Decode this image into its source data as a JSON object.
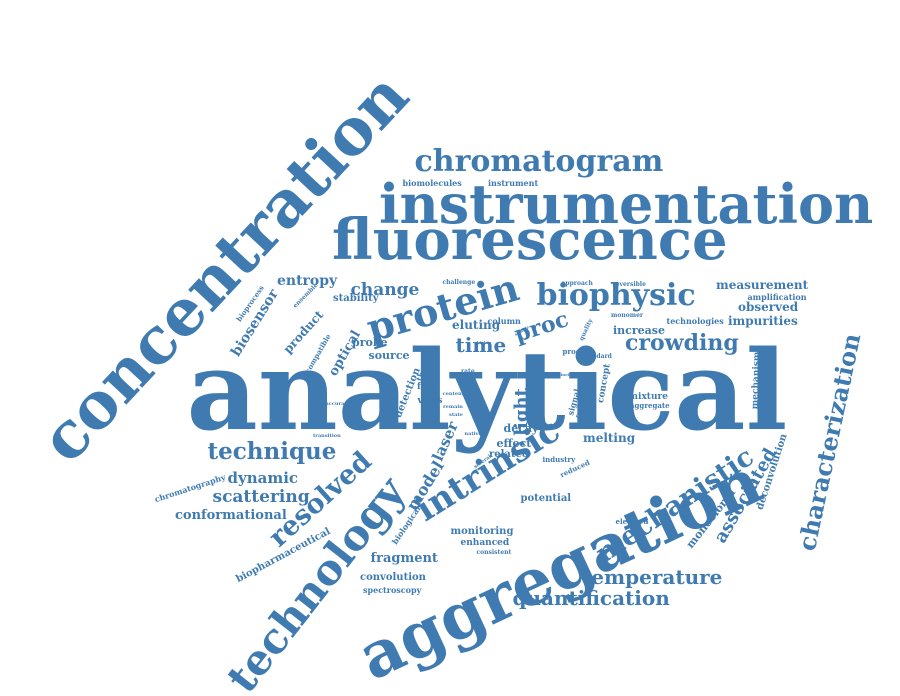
{
  "colors": {
    "word": "#3f7bb0",
    "background": "#ffffff"
  },
  "word_cloud": {
    "words": [
      {
        "id": "concentration",
        "text": "concentration"
      },
      {
        "id": "analytical",
        "text": "analytical"
      },
      {
        "id": "aggregation",
        "text": "aggregation"
      },
      {
        "id": "fluorescence",
        "text": "fluorescence"
      },
      {
        "id": "instrumentation",
        "text": "instrumentation"
      },
      {
        "id": "technology",
        "text": "technology"
      },
      {
        "id": "chromatogram",
        "text": "chromatogram"
      },
      {
        "id": "characterization",
        "text": "characterization"
      },
      {
        "id": "protein",
        "text": "protein"
      },
      {
        "id": "biophysic",
        "text": "biophysic"
      },
      {
        "id": "intrinsic",
        "text": "intrinsic"
      },
      {
        "id": "mechanistic",
        "text": "mechanistic"
      },
      {
        "id": "resolved",
        "text": "resolved"
      },
      {
        "id": "crowding",
        "text": "crowding"
      },
      {
        "id": "technique",
        "text": "technique"
      },
      {
        "id": "temperature",
        "text": "temperature"
      },
      {
        "id": "quantification",
        "text": "quantification"
      },
      {
        "id": "associated",
        "text": "associated"
      },
      {
        "id": "proc",
        "text": "proc"
      },
      {
        "id": "time",
        "text": "time"
      },
      {
        "id": "change",
        "text": "change"
      },
      {
        "id": "entropy",
        "text": "entropy"
      },
      {
        "id": "biosensor",
        "text": "biosensor"
      },
      {
        "id": "scattering",
        "text": "scattering"
      },
      {
        "id": "dynamic",
        "text": "dynamic"
      },
      {
        "id": "conformational",
        "text": "conformational"
      },
      {
        "id": "light",
        "text": "light"
      },
      {
        "id": "model",
        "text": "model"
      },
      {
        "id": "laser",
        "text": "laser"
      },
      {
        "id": "measurement",
        "text": "measurement"
      },
      {
        "id": "impurities",
        "text": "impurities"
      },
      {
        "id": "observed",
        "text": "observed"
      },
      {
        "id": "product",
        "text": "product"
      },
      {
        "id": "optical",
        "text": "optical"
      },
      {
        "id": "eluting",
        "text": "eluting"
      },
      {
        "id": "deconvolution",
        "text": "deconvolution"
      },
      {
        "id": "monoclonal",
        "text": "monoclonal"
      },
      {
        "id": "fragment",
        "text": "fragment"
      },
      {
        "id": "melting",
        "text": "melting"
      },
      {
        "id": "decay",
        "text": "decay"
      },
      {
        "id": "probe",
        "text": "probe"
      },
      {
        "id": "source",
        "text": "source"
      },
      {
        "id": "stability",
        "text": "stability"
      },
      {
        "id": "increase",
        "text": "increase"
      },
      {
        "id": "mixture",
        "text": "mixture"
      },
      {
        "id": "effect",
        "text": "effect"
      },
      {
        "id": "related",
        "text": "related"
      },
      {
        "id": "potential",
        "text": "potential"
      },
      {
        "id": "monitoring",
        "text": "monitoring"
      },
      {
        "id": "enhanced",
        "text": "enhanced"
      },
      {
        "id": "convolution",
        "text": "convolution"
      },
      {
        "id": "spectroscopy",
        "text": "spectroscopy"
      },
      {
        "id": "biopharmaceutical",
        "text": "biopharmaceutical"
      },
      {
        "id": "chromatography",
        "text": "chromatography"
      },
      {
        "id": "biomolecules",
        "text": "biomolecules"
      },
      {
        "id": "instrument",
        "text": "instrument"
      },
      {
        "id": "detection",
        "text": "detection"
      },
      {
        "id": "virus",
        "text": "virus"
      },
      {
        "id": "free",
        "text": "free"
      },
      {
        "id": "mechanism",
        "text": "mechanism"
      },
      {
        "id": "technologies",
        "text": "technologies"
      },
      {
        "id": "amplification",
        "text": "amplification"
      },
      {
        "id": "aggregate",
        "text": "aggregate"
      },
      {
        "id": "column",
        "text": "column"
      },
      {
        "id": "concept",
        "text": "concept"
      },
      {
        "id": "biological",
        "text": "biological"
      },
      {
        "id": "thermal",
        "text": "thermal"
      },
      {
        "id": "compatible",
        "text": "compatible"
      },
      {
        "id": "bioprocess",
        "text": "bioprocess"
      },
      {
        "id": "ensemble",
        "text": "ensemble"
      },
      {
        "id": "challenge",
        "text": "challenge"
      },
      {
        "id": "approach",
        "text": "approach"
      },
      {
        "id": "reversible",
        "text": "reversible"
      },
      {
        "id": "monomer",
        "text": "monomer"
      },
      {
        "id": "proof",
        "text": "proof"
      },
      {
        "id": "standard",
        "text": "standard"
      },
      {
        "id": "signal",
        "text": "signal"
      },
      {
        "id": "critical",
        "text": "critical"
      },
      {
        "id": "quality",
        "text": "quality"
      },
      {
        "id": "industry",
        "text": "industry"
      },
      {
        "id": "reduced",
        "text": "reduced"
      },
      {
        "id": "consistent",
        "text": "consistent"
      },
      {
        "id": "elevated",
        "text": "elevated"
      },
      {
        "id": "transition",
        "text": "transition"
      },
      {
        "id": "accuracy",
        "text": "accuracy"
      },
      {
        "id": "native",
        "text": "native"
      },
      {
        "id": "rate",
        "text": "rate"
      },
      {
        "id": "led",
        "text": "led"
      },
      {
        "id": "label",
        "text": "label"
      },
      {
        "id": "several",
        "text": "several"
      },
      {
        "id": "content",
        "text": "content"
      },
      {
        "id": "remain",
        "text": "remain"
      },
      {
        "id": "state",
        "text": "state"
      },
      {
        "id": "higher",
        "text": "higher"
      },
      {
        "id": "sample",
        "text": "sample"
      },
      {
        "id": "kinetic",
        "text": "kinetic"
      },
      {
        "id": "major",
        "text": "major"
      }
    ]
  }
}
